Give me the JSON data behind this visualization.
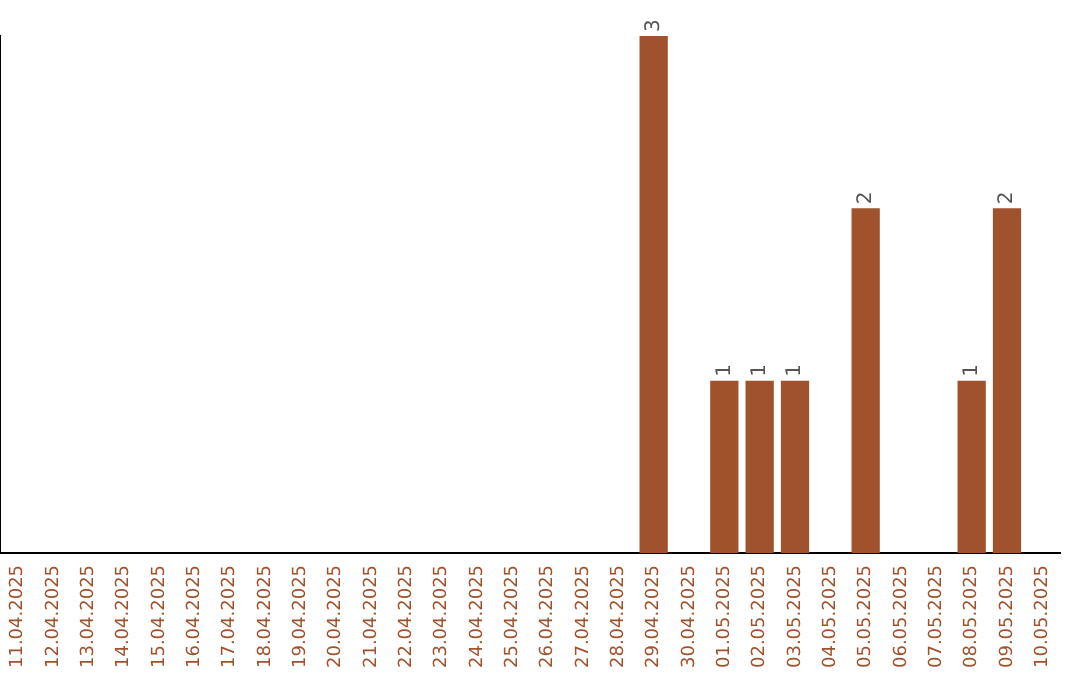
{
  "chart_data": {
    "type": "bar",
    "categories": [
      "11.04.2025",
      "12.04.2025",
      "13.04.2025",
      "14.04.2025",
      "15.04.2025",
      "16.04.2025",
      "17.04.2025",
      "18.04.2025",
      "19.04.2025",
      "20.04.2025",
      "21.04.2025",
      "22.04.2025",
      "23.04.2025",
      "24.04.2025",
      "25.04.2025",
      "26.04.2025",
      "27.04.2025",
      "28.04.2025",
      "29.04.2025",
      "30.04.2025",
      "01.05.2025",
      "02.05.2025",
      "03.05.2025",
      "04.05.2025",
      "05.05.2025",
      "06.05.2025",
      "07.05.2025",
      "08.05.2025",
      "09.05.2025",
      "10.05.2025"
    ],
    "values": [
      null,
      null,
      null,
      null,
      null,
      null,
      null,
      null,
      null,
      null,
      null,
      null,
      null,
      null,
      null,
      null,
      null,
      null,
      3,
      null,
      1,
      1,
      1,
      null,
      2,
      null,
      null,
      1,
      2,
      null
    ],
    "value_labels": [
      null,
      null,
      null,
      null,
      null,
      null,
      null,
      null,
      null,
      null,
      null,
      null,
      null,
      null,
      null,
      null,
      null,
      null,
      "3",
      null,
      "1",
      "1",
      "1",
      null,
      "2",
      null,
      null,
      "1",
      "2",
      null
    ],
    "color": "#a0522d",
    "grid": false,
    "legend": false,
    "tick_labels": "x"
  }
}
